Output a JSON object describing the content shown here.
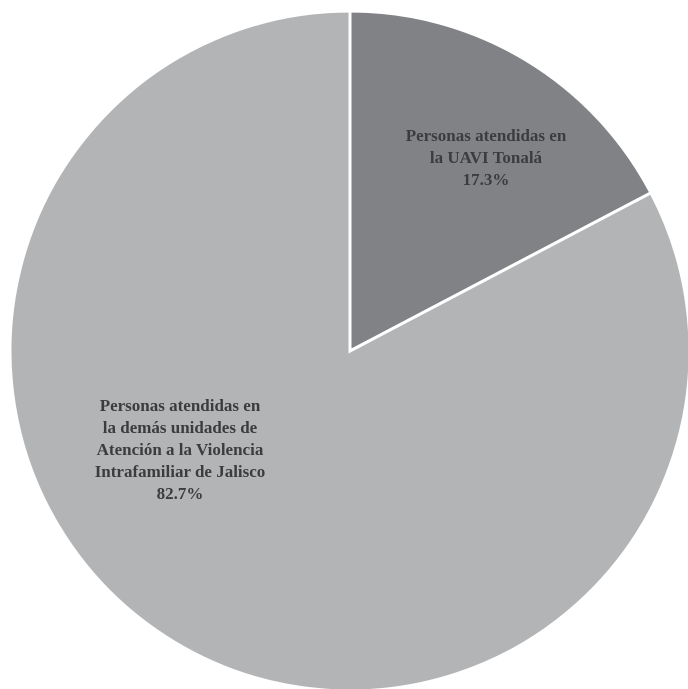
{
  "chart_data": {
    "type": "pie",
    "title": "",
    "start_angle_deg": 0,
    "direction": "clockwise",
    "slices": [
      {
        "label_lines": [
          "Personas atendidas en",
          "la UAVI Tonalá"
        ],
        "value": 17.3,
        "value_label": "17.3%",
        "color": "#808285"
      },
      {
        "label_lines": [
          "Personas atendidas en",
          "la demás unidades de",
          "Atención a la Violencia",
          "Intrafamiliar de Jalisco"
        ],
        "value": 82.7,
        "value_label": "82.7%",
        "color": "#b2b4b6"
      }
    ],
    "separator_color": "#ffffff",
    "label_color": "#3b3c3e"
  }
}
